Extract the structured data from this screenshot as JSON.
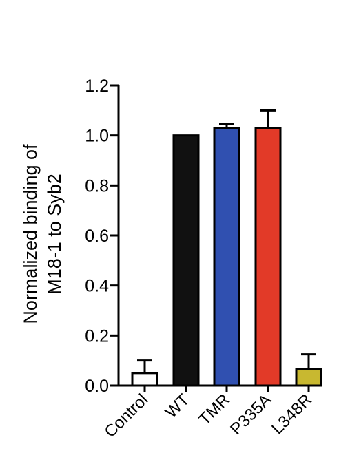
{
  "chart_data": {
    "type": "bar",
    "title": "",
    "ylabel_lines": [
      "Normalized binding of",
      "M18-1 to Syb2"
    ],
    "xlabel": "",
    "ylim": [
      0,
      1.2
    ],
    "yticks": [
      "0.0",
      "0.2",
      "0.4",
      "0.6",
      "0.8",
      "1.0",
      "1.2"
    ],
    "ytick_values": [
      0,
      0.2,
      0.4,
      0.6,
      0.8,
      1.0,
      1.2
    ],
    "categories": [
      "Control",
      "WT",
      "TMR",
      "P335A",
      "L348R"
    ],
    "values": [
      0.05,
      1.0,
      1.03,
      1.03,
      0.065
    ],
    "errors": [
      0.05,
      0.0,
      0.015,
      0.07,
      0.06
    ],
    "colors": [
      "#ffffff",
      "#111111",
      "#3050b0",
      "#e23a28",
      "#c8b830"
    ],
    "grid": false
  }
}
